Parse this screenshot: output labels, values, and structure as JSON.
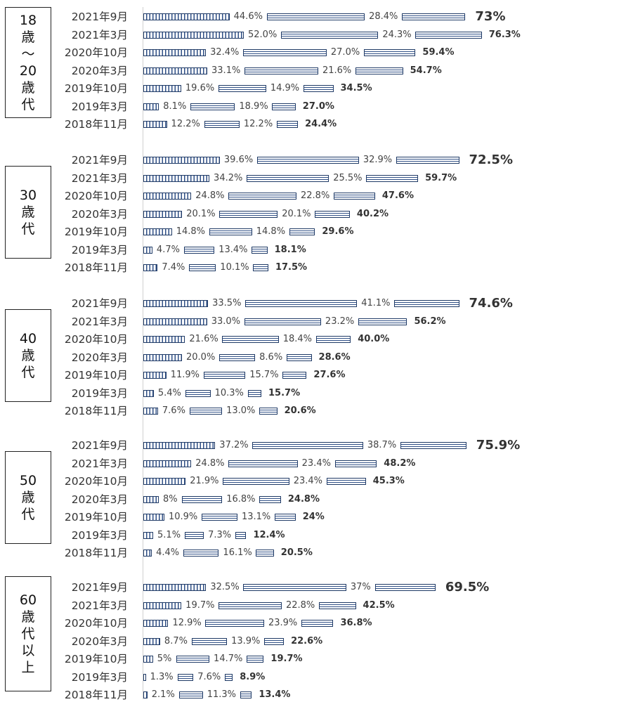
{
  "chart_data": {
    "type": "bar",
    "orientation": "horizontal-stacked",
    "groups": [
      {
        "label": "18\n歳\n〜\n20\n歳\n代",
        "rows": [
          {
            "period": "2021年9月",
            "a": "44.6%",
            "b": "28.4%",
            "total": "73%",
            "big": true
          },
          {
            "period": "2021年3月",
            "a": "52.0%",
            "b": "24.3%",
            "total": "76.3%",
            "big": false
          },
          {
            "period": "2020年10月",
            "a": "32.4%",
            "b": "27.0%",
            "total": "59.4%",
            "big": false
          },
          {
            "period": "2020年3月",
            "a": "33.1%",
            "b": "21.6%",
            "total": "54.7%",
            "big": false
          },
          {
            "period": "2019年10月",
            "a": "19.6%",
            "b": "14.9%",
            "total": "34.5%",
            "big": false
          },
          {
            "period": "2019年3月",
            "a": "8.1%",
            "b": "18.9%",
            "total": "27.0%",
            "big": false
          },
          {
            "period": "2018年11月",
            "a": "12.2%",
            "b": "12.2%",
            "total": "24.4%",
            "big": false
          }
        ]
      },
      {
        "label": "30\n歳\n代",
        "rows": [
          {
            "period": "2021年9月",
            "a": "39.6%",
            "b": "32.9%",
            "total": "72.5%",
            "big": true
          },
          {
            "period": "2021年3月",
            "a": "34.2%",
            "b": "25.5%",
            "total": "59.7%",
            "big": false
          },
          {
            "period": "2020年10月",
            "a": "24.8%",
            "b": "22.8%",
            "total": "47.6%",
            "big": false
          },
          {
            "period": "2020年3月",
            "a": "20.1%",
            "b": "20.1%",
            "total": "40.2%",
            "big": false
          },
          {
            "period": "2019年10月",
            "a": "14.8%",
            "b": "14.8%",
            "total": "29.6%",
            "big": false
          },
          {
            "period": "2019年3月",
            "a": "4.7%",
            "b": "13.4%",
            "total": "18.1%",
            "big": false
          },
          {
            "period": "2018年11月",
            "a": "7.4%",
            "b": "10.1%",
            "total": "17.5%",
            "big": false
          }
        ]
      },
      {
        "label": "40\n歳\n代",
        "rows": [
          {
            "period": "2021年9月",
            "a": "33.5%",
            "b": "41.1%",
            "total": "74.6%",
            "big": true
          },
          {
            "period": "2021年3月",
            "a": "33.0%",
            "b": "23.2%",
            "total": "56.2%",
            "big": false
          },
          {
            "period": "2020年10月",
            "a": "21.6%",
            "b": "18.4%",
            "total": "40.0%",
            "big": false
          },
          {
            "period": "2020年3月",
            "a": "20.0%",
            "b": "8.6%",
            "total": "28.6%",
            "big": false
          },
          {
            "period": "2019年10月",
            "a": "11.9%",
            "b": "15.7%",
            "total": "27.6%",
            "big": false
          },
          {
            "period": "2019年3月",
            "a": "5.4%",
            "b": "10.3%",
            "total": "15.7%",
            "big": false
          },
          {
            "period": "2018年11月",
            "a": "7.6%",
            "b": "13.0%",
            "total": "20.6%",
            "big": false
          }
        ]
      },
      {
        "label": "50\n歳\n代",
        "rows": [
          {
            "period": "2021年9月",
            "a": "37.2%",
            "b": "38.7%",
            "total": "75.9%",
            "big": true
          },
          {
            "period": "2021年3月",
            "a": "24.8%",
            "b": "23.4%",
            "total": "48.2%",
            "big": false
          },
          {
            "period": "2020年10月",
            "a": "21.9%",
            "b": "23.4%",
            "total": "45.3%",
            "big": false
          },
          {
            "period": "2020年3月",
            "a": "8%",
            "b": "16.8%",
            "total": "24.8%",
            "big": false
          },
          {
            "period": "2019年10月",
            "a": "10.9%",
            "b": "13.1%",
            "total": "24%",
            "big": false
          },
          {
            "period": "2019年3月",
            "a": "5.1%",
            "b": "7.3%",
            "total": "12.4%",
            "big": false
          },
          {
            "period": "2018年11月",
            "a": "4.4%",
            "b": "16.1%",
            "total": "20.5%",
            "big": false
          }
        ]
      },
      {
        "label": "60\n歳\n代\n以\n上",
        "rows": [
          {
            "period": "2021年9月",
            "a": "32.5%",
            "b": "37%",
            "total": "69.5%",
            "big": true
          },
          {
            "period": "2021年3月",
            "a": "19.7%",
            "b": "22.8%",
            "total": "42.5%",
            "big": false
          },
          {
            "period": "2020年10月",
            "a": "12.9%",
            "b": "23.9%",
            "total": "36.8%",
            "big": false
          },
          {
            "period": "2020年3月",
            "a": "8.7%",
            "b": "13.9%",
            "total": "22.6%",
            "big": false
          },
          {
            "period": "2019年10月",
            "a": "5%",
            "b": "14.7%",
            "total": "19.7%",
            "big": false
          },
          {
            "period": "2019年3月",
            "a": "1.3%",
            "b": "7.6%",
            "total": "8.9%",
            "big": false
          },
          {
            "period": "2018年11月",
            "a": "2.1%",
            "b": "11.3%",
            "total": "13.4%",
            "big": false
          }
        ]
      }
    ]
  }
}
